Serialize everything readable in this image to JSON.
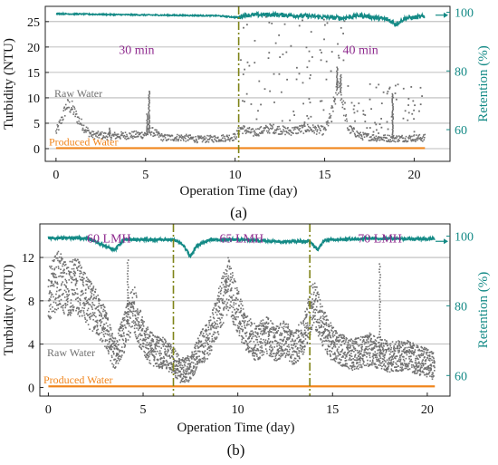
{
  "colors": {
    "raw": "#707070",
    "produced": "#f0861e",
    "retention": "#148a86",
    "divider": "#7f8418",
    "annotation": "#8e2a8e",
    "grid": "#a9a9a9",
    "right_axis": "#148a86"
  },
  "chart_data": [
    {
      "panel": "a",
      "type": "scatter",
      "panel_label": "(a)",
      "xlabel": "Operation Time (day)",
      "ylabel": "Turbidity (NTU)",
      "y2label": "Retention (%)",
      "xlim": [
        -0.6,
        22.0
      ],
      "ylim": [
        -2.5,
        28.0
      ],
      "y2lim": [
        49.2,
        102.0
      ],
      "xticks": [
        0,
        5,
        10,
        15,
        20
      ],
      "yticks": [
        0,
        5,
        10,
        15,
        20,
        25
      ],
      "y2ticks": [
        60,
        80,
        100
      ],
      "grid": "horizontal",
      "series_labels": {
        "raw": "Raw Water",
        "produced": "Produced Water"
      },
      "annotations": [
        {
          "text": "30 min",
          "x": 4.5,
          "y": 18.6
        },
        {
          "text": "40 min",
          "x": 17.0,
          "y": 18.6
        }
      ],
      "dividers": [
        10.2
      ],
      "raw_anchors": [
        [
          0,
          3.2
        ],
        [
          0.3,
          5.5
        ],
        [
          0.6,
          8.5
        ],
        [
          0.9,
          8
        ],
        [
          1.2,
          6
        ],
        [
          1.6,
          4
        ],
        [
          2,
          2.7
        ],
        [
          3,
          2.5
        ],
        [
          4,
          2.6
        ],
        [
          5,
          2.8
        ],
        [
          5.3,
          3.5
        ],
        [
          6,
          2.1
        ],
        [
          7,
          2.2
        ],
        [
          8,
          1.8
        ],
        [
          9,
          2.0
        ],
        [
          10,
          2.3
        ],
        [
          10.3,
          4
        ],
        [
          11,
          3.1
        ],
        [
          12,
          4
        ],
        [
          13,
          3.4
        ],
        [
          14,
          4
        ],
        [
          15,
          3.5
        ],
        [
          15.3,
          6
        ],
        [
          15.6,
          10
        ],
        [
          15.8,
          13
        ],
        [
          16,
          9
        ],
        [
          16.3,
          4
        ],
        [
          17,
          2.5
        ],
        [
          18,
          2.1
        ],
        [
          19,
          2.0
        ],
        [
          20,
          2.1
        ],
        [
          20.6,
          2.1
        ]
      ],
      "raw_spikes": [
        [
          5.2,
          11.5
        ],
        [
          5.1,
          7
        ],
        [
          3,
          4.2
        ],
        [
          15.7,
          16
        ],
        [
          15.9,
          14.5
        ],
        [
          18.8,
          11
        ]
      ],
      "outlier_bands": [
        [
          10.2,
          16.3,
          5,
          26
        ],
        [
          16.3,
          20.6,
          3,
          13
        ]
      ],
      "produced_level": 0.1,
      "produced_range": [
        0,
        20.6
      ],
      "retention_anchors": [
        [
          0,
          99.5
        ],
        [
          3,
          99.2
        ],
        [
          6,
          99
        ],
        [
          9,
          98.8
        ],
        [
          10.2,
          98.2
        ],
        [
          10.5,
          99
        ],
        [
          12,
          99.2
        ],
        [
          14,
          98.7
        ],
        [
          16,
          98
        ],
        [
          17,
          99
        ],
        [
          18.5,
          97.5
        ],
        [
          19,
          96
        ],
        [
          19.5,
          98
        ],
        [
          20.6,
          98.5
        ]
      ],
      "retention_noise": {
        "before_divider": 0.4,
        "after_divider": 1.5
      },
      "arrow_value": 99,
      "sampling_interval_days": 0.025
    },
    {
      "panel": "b",
      "type": "scatter",
      "panel_label": "(b)",
      "xlabel": "Operation Time (day)",
      "ylabel": "Turbidity (NTU)",
      "y2label": "Retention (%)",
      "xlim": [
        -0.45,
        21.2
      ],
      "ylim": [
        -0.8,
        15.1
      ],
      "y2lim": [
        54.1,
        103.5
      ],
      "xticks": [
        0,
        5,
        10,
        15,
        20
      ],
      "yticks": [
        0,
        4,
        8,
        12
      ],
      "y2ticks": [
        60,
        80,
        100
      ],
      "grid": "horizontal",
      "series_labels": {
        "raw": "Raw Water",
        "produced": "Produced Water"
      },
      "annotations": [
        {
          "text": "60 LMH",
          "x": 3.2,
          "y": 13.4
        },
        {
          "text": "65 LMH",
          "x": 10.2,
          "y": 13.4
        },
        {
          "text": "70 LMH",
          "x": 17.5,
          "y": 13.4
        }
      ],
      "dividers": [
        6.6,
        13.8
      ],
      "raw_anchors": [
        [
          0,
          8.5
        ],
        [
          0.5,
          10
        ],
        [
          1,
          9
        ],
        [
          1.5,
          9.5
        ],
        [
          2,
          8
        ],
        [
          2.5,
          7
        ],
        [
          3,
          5.5
        ],
        [
          3.5,
          3
        ],
        [
          4,
          5
        ],
        [
          4.5,
          7.5
        ],
        [
          5,
          4.5
        ],
        [
          5.5,
          3.5
        ],
        [
          6,
          3.2
        ],
        [
          6.6,
          2.5
        ],
        [
          7,
          1.5
        ],
        [
          7.5,
          1.8
        ],
        [
          8,
          3.5
        ],
        [
          8.5,
          4.5
        ],
        [
          9,
          7
        ],
        [
          9.5,
          9.5
        ],
        [
          10,
          7
        ],
        [
          10.5,
          5
        ],
        [
          11,
          4
        ],
        [
          11.5,
          5
        ],
        [
          12,
          4
        ],
        [
          12.5,
          4.5
        ],
        [
          13,
          3.5
        ],
        [
          13.5,
          5
        ],
        [
          14,
          8
        ],
        [
          14.5,
          5.5
        ],
        [
          15,
          4
        ],
        [
          16,
          3
        ],
        [
          17,
          3.5
        ],
        [
          18,
          2.8
        ],
        [
          19,
          3
        ],
        [
          19.5,
          2.5
        ],
        [
          20,
          2.3
        ],
        [
          20.3,
          2
        ]
      ],
      "raw_spikes": [
        [
          4.2,
          11.8
        ],
        [
          17.5,
          11.5
        ],
        [
          9.4,
          11
        ]
      ],
      "outlier_bands": [],
      "produced_level": 0.1,
      "produced_range": [
        0,
        20.4
      ],
      "retention_anchors": [
        [
          0,
          99.5
        ],
        [
          2,
          99.4
        ],
        [
          3.5,
          96
        ],
        [
          4,
          99
        ],
        [
          6.6,
          99
        ],
        [
          7,
          98
        ],
        [
          7.3,
          96
        ],
        [
          7.5,
          94
        ],
        [
          7.8,
          97
        ],
        [
          8.5,
          99
        ],
        [
          10,
          99
        ],
        [
          12,
          98.5
        ],
        [
          13.8,
          98.5
        ],
        [
          14.2,
          96
        ],
        [
          14.6,
          99
        ],
        [
          17,
          99.3
        ],
        [
          20.4,
          99.2
        ]
      ],
      "retention_noise": {
        "before_divider": 0.8,
        "after_divider": 0.8
      },
      "arrow_value": 98.5,
      "sampling_interval_days": 0.012
    }
  ]
}
